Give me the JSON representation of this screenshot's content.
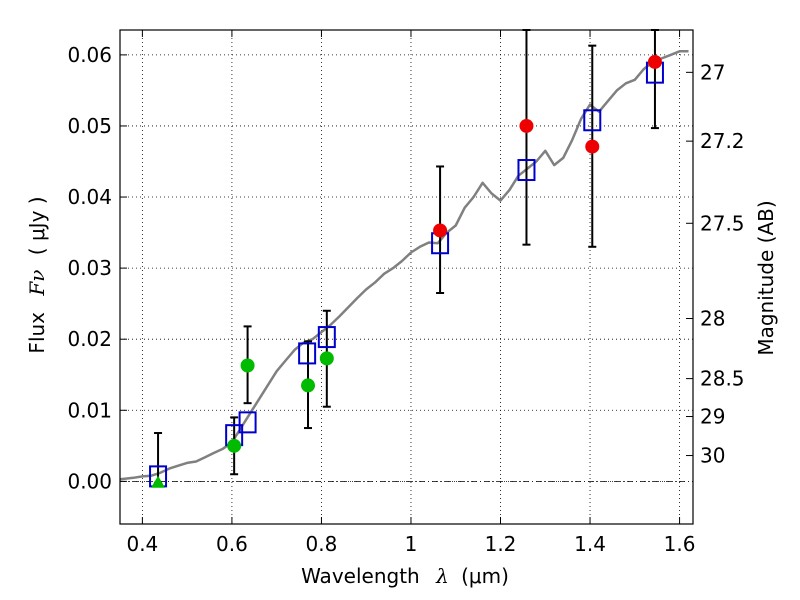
{
  "chart_data": {
    "type": "scatter",
    "xlabel_text": "Wavelength",
    "xlabel_symbol": "λ",
    "xlabel_unit": "(μm)",
    "ylabel_text": "Flux",
    "ylabel_symbol": "Fν",
    "ylabel_unit": "( μJy )",
    "y2label": "Magnitude (AB)",
    "xlim": [
      0.35,
      1.63
    ],
    "ylim": [
      -0.006,
      0.0635
    ],
    "xticks": [
      0.4,
      0.6,
      0.8,
      1.0,
      1.2,
      1.4,
      1.6
    ],
    "xtick_labels": [
      "0.4",
      "0.6",
      "0.8",
      "1",
      "1.2",
      "1.4",
      "1.6"
    ],
    "yticks": [
      0.0,
      0.01,
      0.02,
      0.03,
      0.04,
      0.05,
      0.06
    ],
    "ytick_labels": [
      "0.00",
      "0.01",
      "0.02",
      "0.03",
      "0.04",
      "0.05",
      "0.06"
    ],
    "mag_ticks": [
      27,
      27.2,
      27.5,
      28,
      28.5,
      29,
      30
    ],
    "mag_tick_labels": [
      "27",
      "27.2",
      "27.5",
      "28",
      "28.5",
      "29",
      "30"
    ],
    "grid": true,
    "colors": {
      "model": "#808080",
      "model_points": "#0000cc",
      "green_points": "#00bb00",
      "red_points": "#ee0000",
      "errorbars": "#000000"
    },
    "series": [
      {
        "kind": "line",
        "x": [
          0.35,
          0.38,
          0.4,
          0.42,
          0.44,
          0.46,
          0.48,
          0.5,
          0.52,
          0.54,
          0.56,
          0.58,
          0.6,
          0.62,
          0.64,
          0.66,
          0.68,
          0.7,
          0.72,
          0.74,
          0.76,
          0.78,
          0.8,
          0.82,
          0.84,
          0.86,
          0.88,
          0.9,
          0.92,
          0.94,
          0.96,
          0.98,
          1.0,
          1.02,
          1.04,
          1.06,
          1.08,
          1.1,
          1.12,
          1.14,
          1.16,
          1.18,
          1.2,
          1.22,
          1.24,
          1.26,
          1.28,
          1.3,
          1.32,
          1.34,
          1.36,
          1.38,
          1.4,
          1.42,
          1.44,
          1.46,
          1.48,
          1.5,
          1.52,
          1.54,
          1.56,
          1.58,
          1.6,
          1.62
        ],
        "y": [
          0.0003,
          0.0005,
          0.0007,
          0.0008,
          0.0012,
          0.0018,
          0.0022,
          0.0026,
          0.0028,
          0.0034,
          0.004,
          0.0046,
          0.0055,
          0.0075,
          0.0095,
          0.0115,
          0.0135,
          0.0155,
          0.017,
          0.0185,
          0.0195,
          0.02,
          0.021,
          0.022,
          0.0232,
          0.0245,
          0.0258,
          0.027,
          0.028,
          0.0292,
          0.03,
          0.031,
          0.0322,
          0.033,
          0.0336,
          0.0335,
          0.035,
          0.036,
          0.0385,
          0.04,
          0.042,
          0.0405,
          0.0395,
          0.041,
          0.043,
          0.044,
          0.045,
          0.0465,
          0.0445,
          0.0455,
          0.048,
          0.051,
          0.053,
          0.052,
          0.0535,
          0.055,
          0.056,
          0.0565,
          0.058,
          0.059,
          0.0595,
          0.06,
          0.0605,
          0.0605
        ]
      },
      {
        "kind": "open-square",
        "x": [
          0.435,
          0.605,
          0.635,
          0.768,
          0.812,
          1.065,
          1.258,
          1.405,
          1.545
        ],
        "y": [
          0.0007,
          0.0065,
          0.0083,
          0.018,
          0.0203,
          0.0335,
          0.0438,
          0.0508,
          0.0575
        ]
      },
      {
        "kind": "filled-circle",
        "color_key": "green_points",
        "x": [
          0.605,
          0.635,
          0.77,
          0.812
        ],
        "y": [
          0.005,
          0.0163,
          0.0135,
          0.0173
        ]
      },
      {
        "kind": "filled-triangle",
        "color_key": "green_points",
        "x": [
          0.435
        ],
        "y": [
          -0.0002
        ]
      },
      {
        "kind": "filled-circle",
        "color_key": "red_points",
        "x": [
          1.065,
          1.258,
          1.405,
          1.545
        ],
        "y": [
          0.0353,
          0.05,
          0.0471,
          0.059
        ]
      },
      {
        "kind": "errorbar",
        "x": [
          0.435,
          0.605,
          0.635,
          0.77,
          0.812,
          1.065,
          1.258,
          1.405,
          1.545
        ],
        "y_low": [
          -0.0002,
          0.001,
          0.011,
          0.0075,
          0.0105,
          0.0265,
          0.0333,
          0.033,
          0.0497
        ],
        "y_high": [
          0.0068,
          0.009,
          0.0218,
          0.0197,
          0.024,
          0.0443,
          0.0635,
          0.0613,
          0.0635
        ]
      }
    ]
  }
}
